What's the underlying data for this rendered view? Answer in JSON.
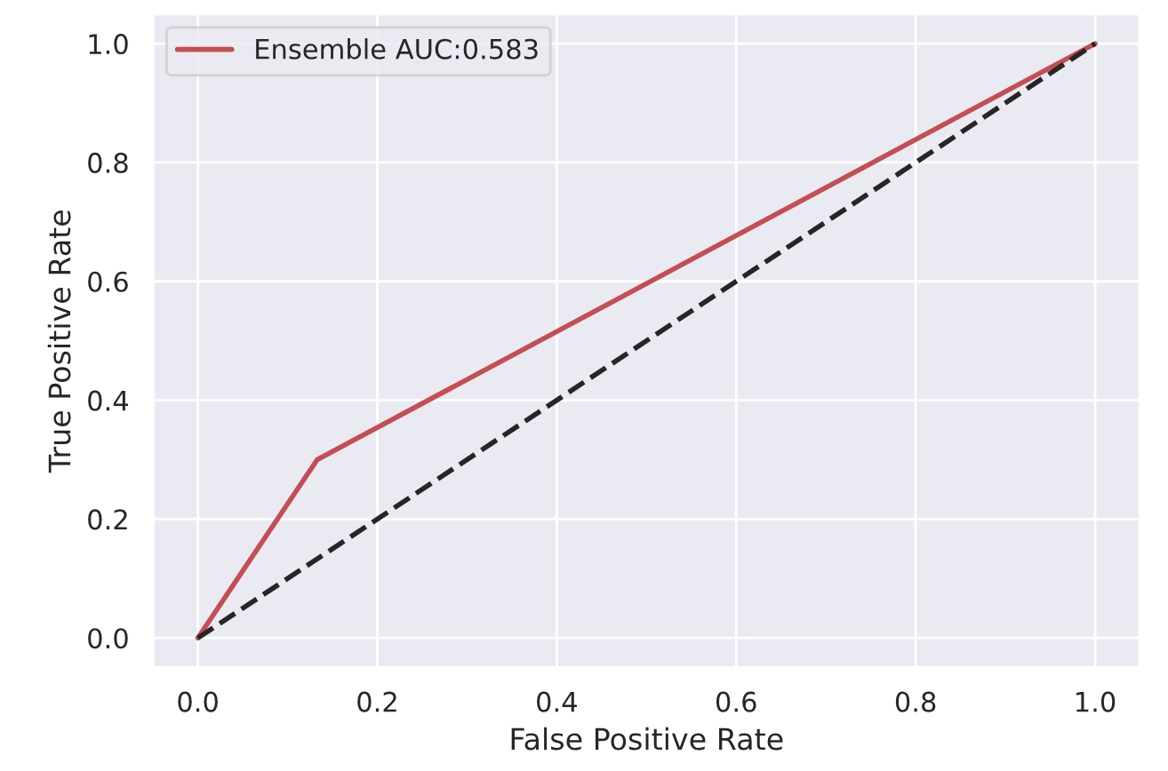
{
  "chart_data": {
    "type": "line",
    "xlabel": "False Positive Rate",
    "ylabel": "True Positive Rate",
    "series": [
      {
        "name": "Ensemble AUC:0.583",
        "color": "#c44e52",
        "x": [
          0.0,
          0.133,
          1.0
        ],
        "values": [
          0.0,
          0.3,
          1.0
        ],
        "line_style": "solid"
      },
      {
        "color": "#262626",
        "x": [
          0.0,
          1.0
        ],
        "values": [
          0.0,
          1.0
        ],
        "line_style": "dashed"
      }
    ],
    "xlim": [
      -0.05,
      1.05
    ],
    "ylim": [
      -0.05,
      1.05
    ],
    "xticks": [
      {
        "value": 0,
        "label": "0.0"
      },
      {
        "value": 0.2,
        "label": "0.2"
      },
      {
        "value": 0.4,
        "label": "0.4"
      },
      {
        "value": 0.6,
        "label": "0.6"
      },
      {
        "value": 0.8,
        "label": "0.8"
      },
      {
        "value": 1,
        "label": "1.0"
      }
    ],
    "yticks": [
      {
        "value": 0,
        "label": "0.0"
      },
      {
        "value": 0.2,
        "label": "0.2"
      },
      {
        "value": 0.4,
        "label": "0.4"
      },
      {
        "value": 0.6,
        "label": "0.6"
      },
      {
        "value": 0.8,
        "label": "0.8"
      },
      {
        "value": 1,
        "label": "1.0"
      }
    ],
    "grid": true,
    "legend": "top left"
  }
}
